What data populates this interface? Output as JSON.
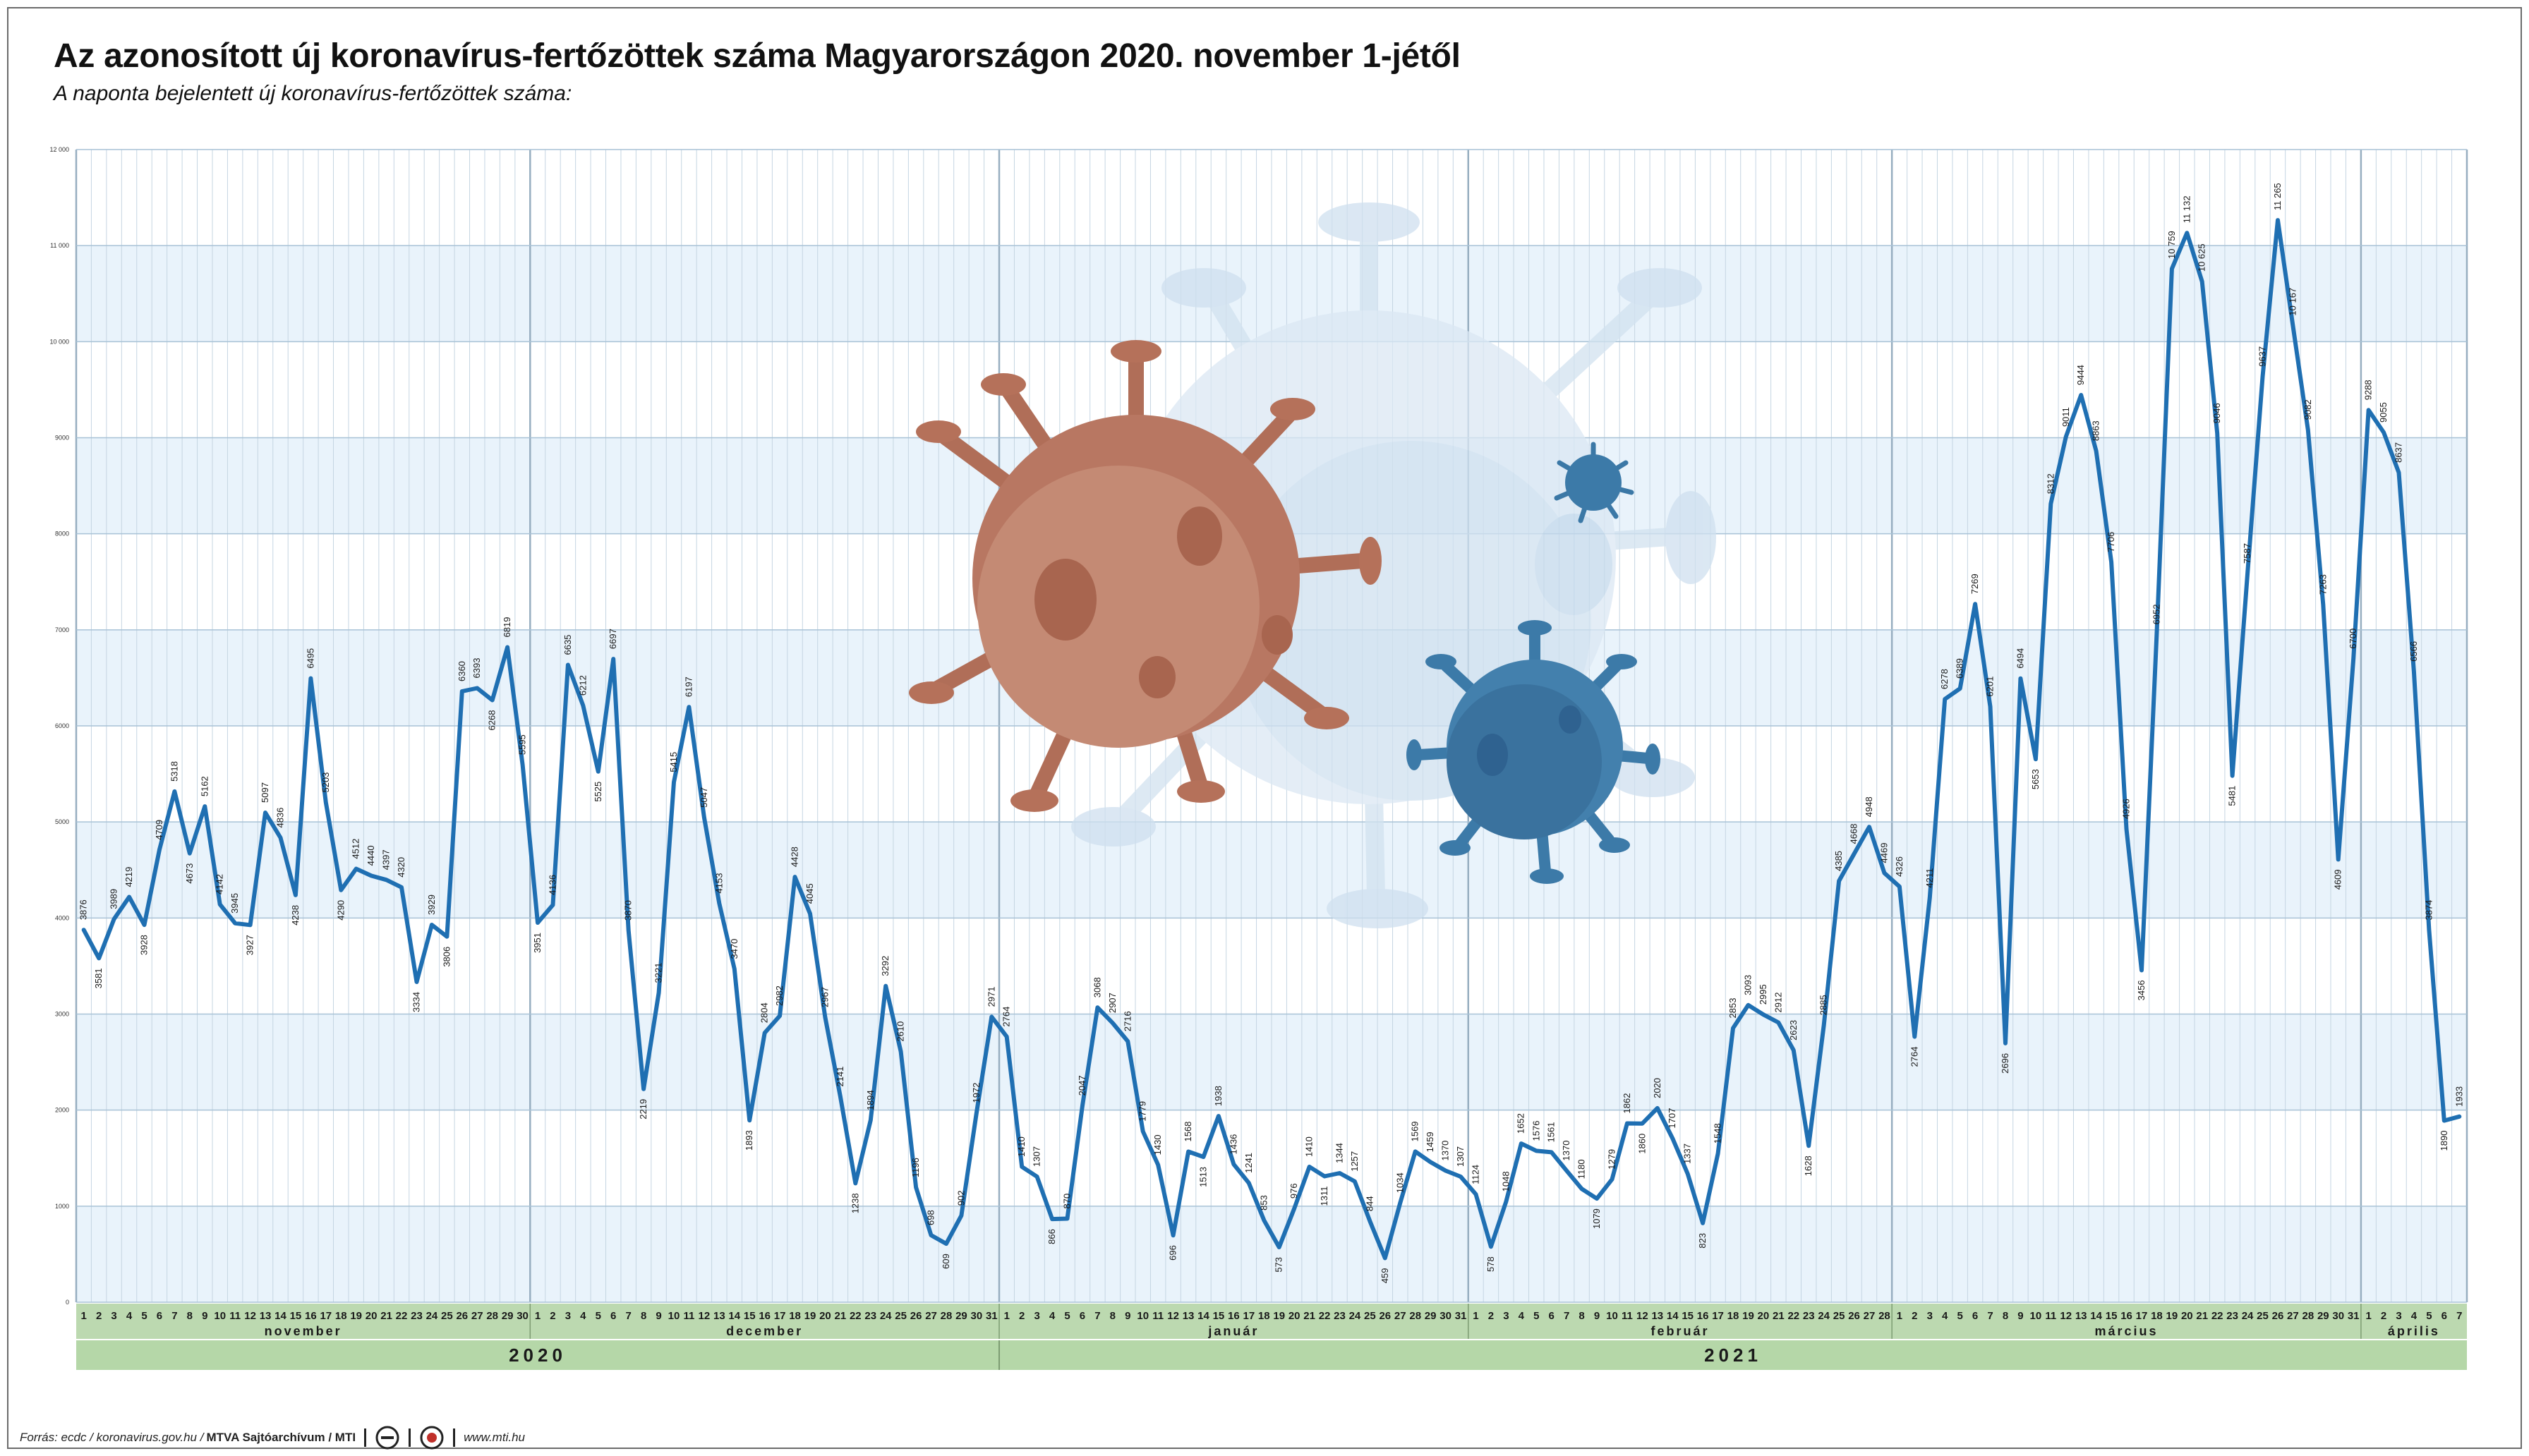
{
  "header": {
    "title": "Az azonosított új koronavírus-fertőzöttek száma Magyarországon 2020. november 1-jétől",
    "subtitle": "A naponta bejelentett új koronavírus-fertőzöttek száma:"
  },
  "footer": {
    "source": "Forrás: ecdc / koronavirus.gov.hu /",
    "agency": "MTVA Sajtóarchívum / MTI",
    "url": "www.mti.hu"
  },
  "colors": {
    "line": "#1f6fb2",
    "band_light": "#e9f3fb",
    "band_white": "#ffffff",
    "month_strip": "#bcd9b0",
    "year_strip": "#b5d7a8",
    "virus_brown": "#b5715a",
    "virus_blue": "#3c7aa8",
    "virus_pale": "#cfe0ef"
  },
  "chart_data": {
    "type": "line",
    "title": "Az azonosított új koronavírus-fertőzöttek száma Magyarországon 2020. november 1-jétől",
    "subtitle": "A naponta bejelentett új koronavírus-fertőzöttek száma:",
    "ylim": [
      0,
      12000
    ],
    "yticks": [
      "0",
      "1000",
      "2000",
      "3000",
      "4000",
      "5000",
      "6000",
      "7000",
      "8000",
      "9000",
      "10 000",
      "11 000",
      "12 000"
    ],
    "grid": true,
    "months": [
      {
        "label": "november",
        "days": 30,
        "start_index": 0
      },
      {
        "label": "december",
        "days": 31,
        "start_index": 30
      },
      {
        "label": "január",
        "days": 31,
        "start_index": 61
      },
      {
        "label": "február",
        "days": 28,
        "start_index": 92
      },
      {
        "label": "március",
        "days": 31,
        "start_index": 120
      },
      {
        "label": "április",
        "days": 7,
        "start_index": 151
      }
    ],
    "years": [
      {
        "label": "2020",
        "start_index": 0,
        "end_index": 61
      },
      {
        "label": "2021",
        "start_index": 61,
        "end_index": 158
      }
    ],
    "series": [
      {
        "values": [
          3876,
          3581,
          3989,
          4219,
          3928,
          4709,
          5318,
          4673,
          5162,
          4142,
          3945,
          3927,
          5097,
          4836,
          4238,
          6495,
          5203,
          4290,
          4512,
          4440,
          4397,
          4320,
          3334,
          3929,
          3806,
          6360,
          6393,
          6268,
          6819,
          5595,
          3951,
          4136,
          6635,
          6212,
          5525,
          6697,
          3870,
          2219,
          3221,
          5415,
          6197,
          5047,
          4153,
          3470,
          1893,
          2804,
          2982,
          4428,
          4045,
          2967,
          2141,
          1238,
          1894,
          3292,
          2610,
          1196,
          698,
          609,
          902,
          1972,
          2971,
          2764,
          1410,
          1307,
          866,
          870,
          2047,
          3068,
          2907,
          2716,
          1779,
          1430,
          696,
          1568,
          1513,
          1938,
          1436,
          1241,
          853,
          573,
          976,
          1410,
          1311,
          1344,
          1257,
          844,
          459,
          1034,
          1569,
          1459,
          1370,
          1307,
          1124,
          578,
          1048,
          1652,
          1576,
          1561,
          1370,
          1180,
          1079,
          1279,
          1862,
          1860,
          2020,
          1707,
          1337,
          823,
          1548,
          2853,
          3093,
          2995,
          2912,
          2623,
          1628,
          2885,
          4385,
          4668,
          4948,
          4469,
          4326,
          2764,
          4211,
          6278,
          6389,
          7269,
          6201,
          2696,
          6494,
          5653,
          8312,
          9011,
          9444,
          8863,
          7706,
          4926,
          3456,
          6952,
          10759,
          11132,
          10625,
          9046,
          5481,
          7587,
          9637,
          11265,
          10167,
          9082,
          7263,
          4609,
          6700,
          9288,
          9055,
          8637,
          6566,
          3874,
          1890,
          1933
        ],
        "labels": [
          "3876",
          "3581",
          "3989",
          "4219",
          "3928",
          "4709",
          "5318",
          "4673",
          "5162",
          "4142",
          "3945",
          "3927",
          "5097",
          "4836",
          "4238",
          "6495",
          "5203",
          "4290",
          "4512",
          "4440",
          "4397",
          "4320",
          "3334",
          "3929",
          "3806",
          "6360",
          "6393",
          "6268",
          "6819",
          "5595",
          "3951",
          "4136",
          "6635",
          "6212",
          "5525",
          "6697",
          "3870",
          "2219",
          "3221",
          "5415",
          "6197",
          "5047",
          "4153",
          "3470",
          "1893",
          "2804",
          "2982",
          "4428",
          "4045",
          "2967",
          "2141",
          "1238",
          "1894",
          "3292",
          "2610",
          "1196",
          "698",
          "609",
          "902",
          "1972",
          "2971",
          "2764",
          "1410",
          "1307",
          "866",
          "870",
          "2047",
          "3068",
          "2907",
          "2716",
          "1779",
          "1430",
          "696",
          "1568",
          "1513",
          "1938",
          "1436",
          "1241",
          "853",
          "573",
          "976",
          "1410",
          "1311",
          "1344",
          "1257",
          "844",
          "459",
          "1034",
          "1569",
          "1459",
          "1370",
          "1307",
          "1124",
          "578",
          "1048",
          "1652",
          "1576",
          "1561",
          "1370",
          "1180",
          "1079",
          "1279",
          "1862",
          "1860",
          "2020",
          "1707",
          "1337",
          "823",
          "1548",
          "2853",
          "3093",
          "2995",
          "2912",
          "2623",
          "1628",
          "2885",
          "4385",
          "4668",
          "4948",
          "4469",
          "4326",
          "2764",
          "4211",
          "6278",
          "6389",
          "7269",
          "6201",
          "2696",
          "6494",
          "5653",
          "8312",
          "9011",
          "9444",
          "8863",
          "7706",
          "4926",
          "3456",
          "6952",
          "10 759",
          "11 132",
          "10 625",
          "9046",
          "5481",
          "7587",
          "9637",
          "11 265",
          "10 167",
          "9082",
          "7263",
          "4609",
          "6700",
          "9288",
          "9055",
          "8637",
          "6566",
          "3874",
          "1890",
          "1933"
        ]
      }
    ]
  }
}
